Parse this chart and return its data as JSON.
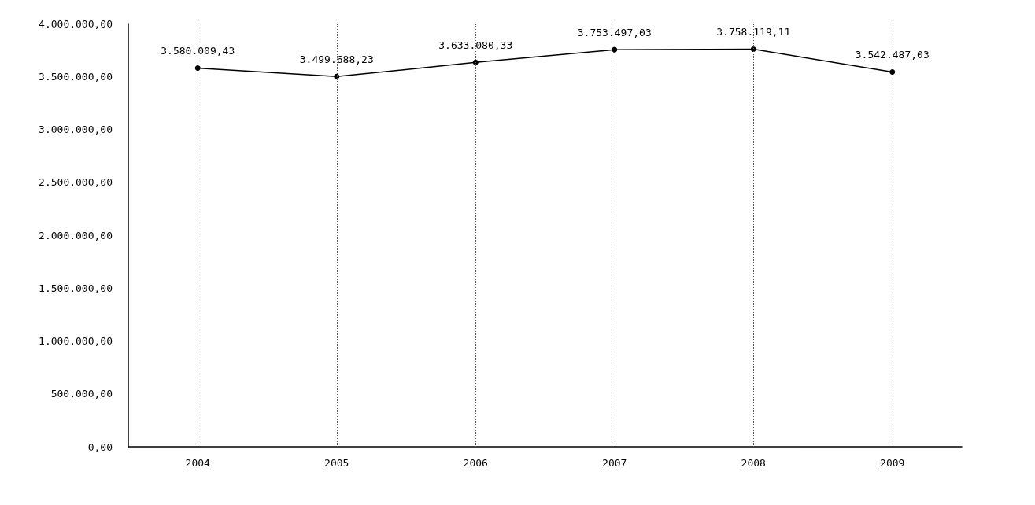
{
  "chart_data": {
    "type": "line",
    "categories": [
      "2004",
      "2005",
      "2006",
      "2007",
      "2008",
      "2009"
    ],
    "series": [
      {
        "color": "#000000",
        "values": [
          3580009.43,
          3499688.23,
          3633080.33,
          3753497.03,
          3758119.11,
          3542487.03
        ],
        "value_labels": [
          "3.580.009,43",
          "3.499.688,23",
          "3.633.080,33",
          "3.753.497,03",
          "3.758.119,11",
          "3.542.487,03"
        ]
      }
    ],
    "ylim": [
      0,
      4000000
    ],
    "yticks": [
      {
        "value": 0,
        "label": "0,00"
      },
      {
        "value": 500000,
        "label": "500.000,00"
      },
      {
        "value": 1000000,
        "label": "1.000.000,00"
      },
      {
        "value": 1500000,
        "label": "1.500.000,00"
      },
      {
        "value": 2000000,
        "label": "2.000.000,00"
      },
      {
        "value": 2500000,
        "label": "2.500.000,00"
      },
      {
        "value": 3000000,
        "label": "3.000.000,00"
      },
      {
        "value": 3500000,
        "label": "3.500.000,00"
      },
      {
        "value": 4000000,
        "label": "4.000.000,00"
      }
    ],
    "grid": "x",
    "marker": "circle",
    "line_style": "solid"
  }
}
